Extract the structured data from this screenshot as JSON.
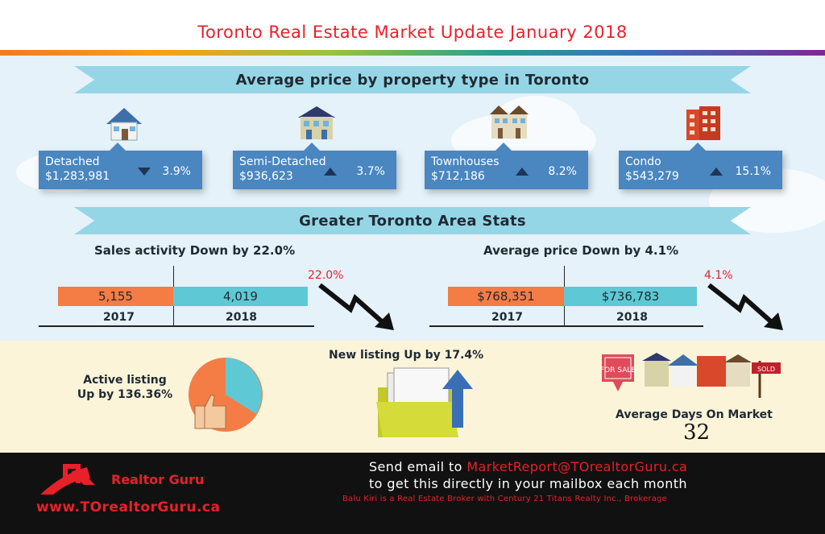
{
  "title": "Toronto Real Estate Market Update January 2018",
  "ribbon1": "Average price by property type in Toronto",
  "ribbon2": "Greater Toronto Area Stats",
  "property_types": [
    {
      "name": "Detached",
      "price": "$1,283,981",
      "direction": "down",
      "change": "3.9%",
      "icon": "detached-house-icon"
    },
    {
      "name": "Semi-Detached",
      "price": "$936,623",
      "direction": "up",
      "change": "3.7%",
      "icon": "semi-detached-house-icon"
    },
    {
      "name": "Townhouses",
      "price": "$712,186",
      "direction": "up",
      "change": "8.2%",
      "icon": "townhouse-icon"
    },
    {
      "name": "Condo",
      "price": "$543,279",
      "direction": "up",
      "change": "15.1%",
      "icon": "condo-building-icon"
    }
  ],
  "sales": {
    "heading": "Sales activity Down by 22.0%",
    "value_2017": "5,155",
    "value_2018": "4,019",
    "year1": "2017",
    "year2": "2018",
    "pct": "22.0%"
  },
  "avg_price": {
    "heading": "Average price  Down by 4.1%",
    "value_2017": "$768,351",
    "value_2018": "$736,783",
    "year1": "2017",
    "year2": "2018",
    "pct": "4.1%"
  },
  "active_listing": {
    "line1": "Active listing",
    "line2": "Up by 136.36%"
  },
  "new_listing": "New listing Up by 17.4%",
  "days_on_market": {
    "label": "Average Days On Market",
    "value": "32"
  },
  "sign_for_sale": "FOR SALE",
  "sign_sold": "SOLD",
  "footer": {
    "brand": "Realtor Guru",
    "site": "www.TOrealtorGuru.ca",
    "line1_prefix": "Send email to ",
    "email": "MarketReport@TOrealtorGuru.ca",
    "line2": "to get this directly in your mailbox each month",
    "line3": "Balu Kiri is a Real Estate Broker with Century 21 Titans Realty Inc., Brokerage"
  },
  "colors": {
    "accent_red": "#e8202a",
    "card_blue": "#4a86c0",
    "ribbon": "#95d6e6",
    "bar_2017": "#f47c45",
    "bar_2018": "#5ec9d4"
  }
}
